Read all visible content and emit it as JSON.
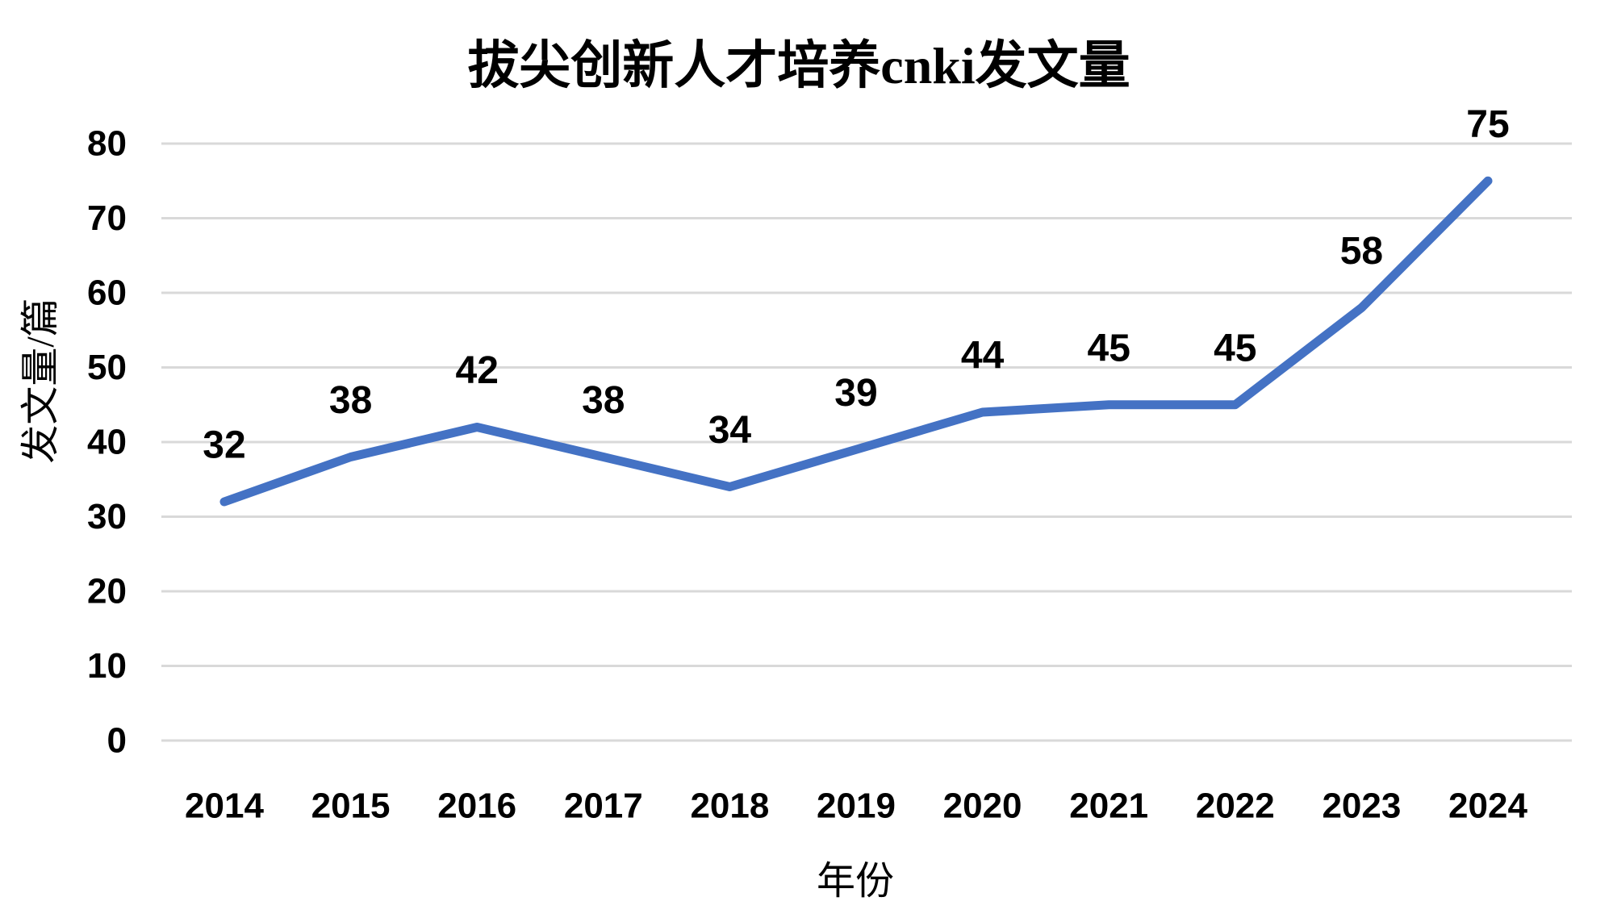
{
  "title": "拔尖创新人才培养cnki发文量",
  "colors": {
    "line": "#4472C4",
    "gridline": "#D9D9D9",
    "text": "#000000",
    "background": "#FFFFFF"
  },
  "chart_data": {
    "type": "line",
    "title": "拔尖创新人才培养cnki发文量",
    "xlabel": "年份",
    "ylabel": "发文量/篇",
    "categories": [
      "2014",
      "2015",
      "2016",
      "2017",
      "2018",
      "2019",
      "2020",
      "2021",
      "2022",
      "2023",
      "2024"
    ],
    "values": [
      32,
      38,
      42,
      38,
      34,
      39,
      44,
      45,
      45,
      58,
      75
    ],
    "data_labels": [
      "32",
      "38",
      "42",
      "38",
      "34",
      "39",
      "44",
      "45",
      "45",
      "58",
      "75"
    ],
    "yticks": [
      0,
      10,
      20,
      30,
      40,
      50,
      60,
      70,
      80
    ],
    "ylim": [
      0,
      80
    ],
    "grid": true,
    "legend": false,
    "markers": false
  }
}
